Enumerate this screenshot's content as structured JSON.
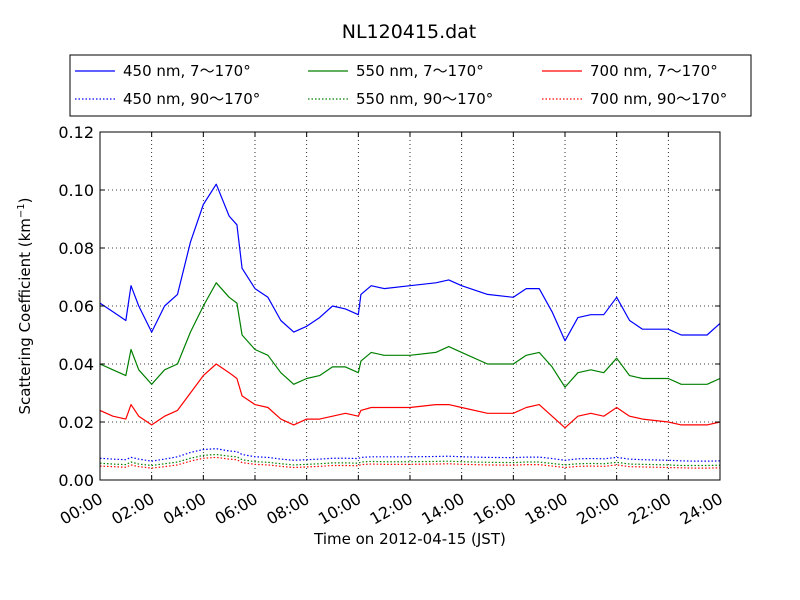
{
  "chart_data": {
    "type": "line",
    "title": "NL120415.dat",
    "xlabel": "Time on 2012-04-15 (JST)",
    "ylabel": "Scattering Coefficient (km",
    "ylabel_sup": "−1",
    "ylabel_close": ")",
    "xlim": [
      "00:00",
      "24:00"
    ],
    "ylim": [
      0,
      0.12
    ],
    "grid": true,
    "legend_position": "top",
    "x_ticks": [
      "00:00",
      "02:00",
      "04:00",
      "06:00",
      "08:00",
      "10:00",
      "12:00",
      "14:00",
      "16:00",
      "18:00",
      "20:00",
      "22:00",
      "24:00"
    ],
    "y_ticks": [
      "0.00",
      "0.02",
      "0.04",
      "0.06",
      "0.08",
      "0.10",
      "0.12"
    ],
    "x_hours": [
      0,
      0.5,
      1,
      1.2,
      1.5,
      2,
      2.5,
      3,
      3.5,
      4,
      4.5,
      5,
      5.3,
      5.5,
      6,
      6.5,
      7,
      7.5,
      8,
      8.5,
      9,
      9.5,
      10,
      10.1,
      10.5,
      11,
      12,
      13,
      13.5,
      14,
      15,
      16,
      16.5,
      17,
      17.5,
      18,
      18.5,
      19,
      19.5,
      20,
      20.5,
      21,
      22,
      22.5,
      23,
      23.5,
      24
    ],
    "series": [
      {
        "name": "450 nm, 7～170°",
        "color": "#0000ff",
        "style": "solid",
        "values": [
          0.061,
          0.058,
          0.055,
          0.067,
          0.06,
          0.051,
          0.06,
          0.064,
          0.082,
          0.095,
          0.102,
          0.091,
          0.088,
          0.073,
          0.066,
          0.063,
          0.055,
          0.051,
          0.053,
          0.056,
          0.06,
          0.059,
          0.057,
          0.064,
          0.067,
          0.066,
          0.067,
          0.068,
          0.069,
          0.067,
          0.064,
          0.063,
          0.066,
          0.066,
          0.058,
          0.048,
          0.056,
          0.057,
          0.057,
          0.063,
          0.055,
          0.052,
          0.052,
          0.05,
          0.05,
          0.05,
          0.054
        ]
      },
      {
        "name": "550 nm, 7～170°",
        "color": "#008000",
        "style": "solid",
        "values": [
          0.04,
          0.038,
          0.036,
          0.045,
          0.038,
          0.033,
          0.038,
          0.04,
          0.051,
          0.06,
          0.068,
          0.063,
          0.061,
          0.05,
          0.045,
          0.043,
          0.037,
          0.033,
          0.035,
          0.036,
          0.039,
          0.039,
          0.037,
          0.041,
          0.044,
          0.043,
          0.043,
          0.044,
          0.046,
          0.044,
          0.04,
          0.04,
          0.043,
          0.044,
          0.039,
          0.032,
          0.037,
          0.038,
          0.037,
          0.042,
          0.036,
          0.035,
          0.035,
          0.033,
          0.033,
          0.033,
          0.035
        ]
      },
      {
        "name": "700 nm, 7～170°",
        "color": "#ff0000",
        "style": "solid",
        "values": [
          0.024,
          0.022,
          0.021,
          0.026,
          0.022,
          0.019,
          0.022,
          0.024,
          0.03,
          0.036,
          0.04,
          0.037,
          0.035,
          0.029,
          0.026,
          0.025,
          0.021,
          0.019,
          0.021,
          0.021,
          0.022,
          0.023,
          0.022,
          0.024,
          0.025,
          0.025,
          0.025,
          0.026,
          0.026,
          0.025,
          0.023,
          0.023,
          0.025,
          0.026,
          0.022,
          0.018,
          0.022,
          0.023,
          0.022,
          0.025,
          0.022,
          0.021,
          0.02,
          0.019,
          0.019,
          0.019,
          0.02
        ]
      },
      {
        "name": "450 nm, 90～170°",
        "color": "#0000ff",
        "style": "dotted",
        "values": [
          0.0075,
          0.0072,
          0.007,
          0.0078,
          0.0072,
          0.0065,
          0.0072,
          0.008,
          0.0095,
          0.0105,
          0.0108,
          0.01,
          0.0098,
          0.0088,
          0.008,
          0.0078,
          0.0072,
          0.0068,
          0.007,
          0.0072,
          0.0075,
          0.0075,
          0.0074,
          0.0078,
          0.008,
          0.008,
          0.008,
          0.0081,
          0.0082,
          0.008,
          0.0078,
          0.0077,
          0.0079,
          0.0079,
          0.0074,
          0.0068,
          0.0073,
          0.0074,
          0.0073,
          0.0078,
          0.0072,
          0.007,
          0.0068,
          0.0066,
          0.0065,
          0.0065,
          0.0066
        ]
      },
      {
        "name": "550 nm, 90～170°",
        "color": "#008000",
        "style": "dotted",
        "values": [
          0.0058,
          0.0055,
          0.0053,
          0.0062,
          0.0055,
          0.005,
          0.0056,
          0.0062,
          0.0075,
          0.0085,
          0.0088,
          0.0082,
          0.008,
          0.007,
          0.0063,
          0.0061,
          0.0056,
          0.0052,
          0.0054,
          0.0056,
          0.0059,
          0.0059,
          0.0058,
          0.0062,
          0.0064,
          0.0063,
          0.0063,
          0.0064,
          0.0065,
          0.0063,
          0.0061,
          0.006,
          0.0062,
          0.0062,
          0.0057,
          0.0052,
          0.0056,
          0.0057,
          0.0056,
          0.0061,
          0.0055,
          0.0054,
          0.0052,
          0.005,
          0.005,
          0.005,
          0.0051
        ]
      },
      {
        "name": "700 nm, 90～170°",
        "color": "#ff0000",
        "style": "dotted",
        "values": [
          0.0048,
          0.0046,
          0.0044,
          0.0052,
          0.0046,
          0.0041,
          0.0046,
          0.0052,
          0.0065,
          0.0075,
          0.0078,
          0.0072,
          0.007,
          0.006,
          0.0054,
          0.0052,
          0.0047,
          0.0043,
          0.0045,
          0.0047,
          0.005,
          0.005,
          0.0049,
          0.0053,
          0.0055,
          0.0054,
          0.0054,
          0.0055,
          0.0056,
          0.0054,
          0.0052,
          0.0051,
          0.0053,
          0.0053,
          0.0048,
          0.0043,
          0.0047,
          0.0048,
          0.0047,
          0.0052,
          0.0046,
          0.0045,
          0.0043,
          0.0042,
          0.0041,
          0.0041,
          0.0042
        ]
      }
    ]
  }
}
